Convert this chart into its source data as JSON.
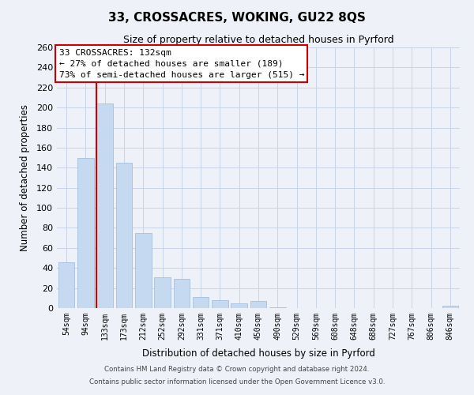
{
  "title": "33, CROSSACRES, WOKING, GU22 8QS",
  "subtitle": "Size of property relative to detached houses in Pyrford",
  "xlabel": "Distribution of detached houses by size in Pyrford",
  "ylabel": "Number of detached properties",
  "footer1": "Contains HM Land Registry data © Crown copyright and database right 2024.",
  "footer2": "Contains public sector information licensed under the Open Government Licence v3.0.",
  "bar_labels": [
    "54sqm",
    "94sqm",
    "133sqm",
    "173sqm",
    "212sqm",
    "252sqm",
    "292sqm",
    "331sqm",
    "371sqm",
    "410sqm",
    "450sqm",
    "490sqm",
    "529sqm",
    "569sqm",
    "608sqm",
    "648sqm",
    "688sqm",
    "727sqm",
    "767sqm",
    "806sqm",
    "846sqm"
  ],
  "bar_values": [
    46,
    150,
    204,
    145,
    75,
    31,
    29,
    11,
    8,
    5,
    7,
    1,
    0,
    0,
    0,
    0,
    0,
    0,
    0,
    0,
    2
  ],
  "bar_color": "#c5d9f0",
  "bar_edge_color": "#9ab8d8",
  "highlight_bar_index": 2,
  "highlight_line_color": "#cc0000",
  "ylim": [
    0,
    260
  ],
  "yticks": [
    0,
    20,
    40,
    60,
    80,
    100,
    120,
    140,
    160,
    180,
    200,
    220,
    240,
    260
  ],
  "annotation_title": "33 CROSSACRES: 132sqm",
  "annotation_line1": "← 27% of detached houses are smaller (189)",
  "annotation_line2": "73% of semi-detached houses are larger (515) →",
  "annotation_box_color": "#ffffff",
  "annotation_box_edgecolor": "#cc0000",
  "grid_color": "#c8d4e8",
  "bg_color": "#eef2f8",
  "title_fontsize": 11,
  "subtitle_fontsize": 9
}
